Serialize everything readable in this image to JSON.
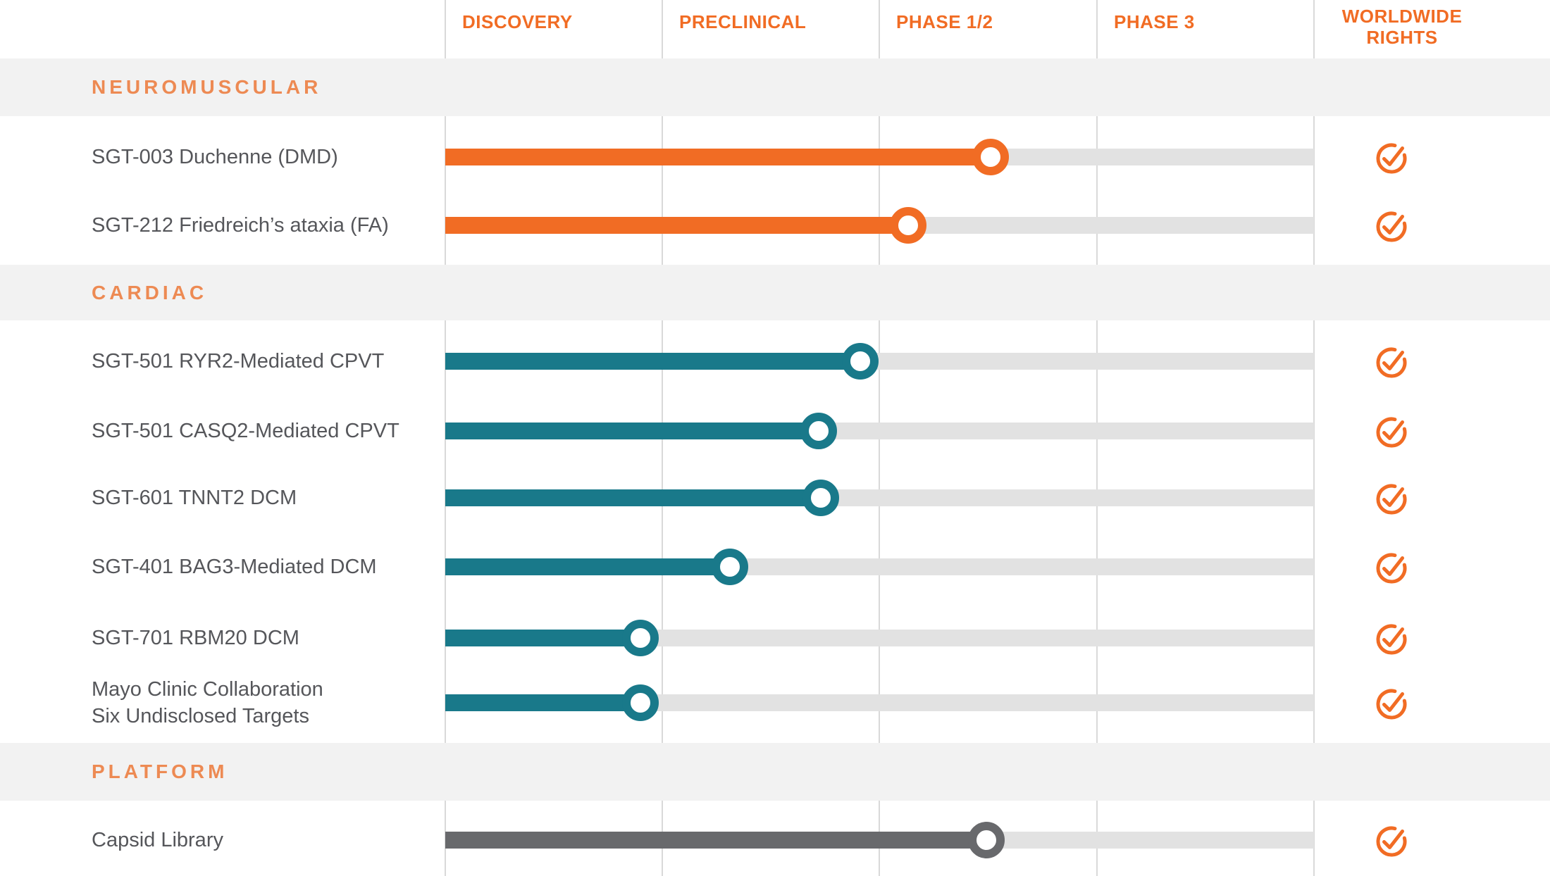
{
  "palette": {
    "bar_orange": "#f16c24",
    "bar_teal": "#19798a",
    "bar_gray": "#68696c",
    "track_gray": "#e2e2e2",
    "section_band_gray": "#f2f2f2",
    "section_label_orange": "#ed8a53",
    "header_label_orange": "#f16c24",
    "row_label_gray": "#55565a",
    "gridline_gray": "#d9d9d9",
    "check_orange": "#f16c24"
  },
  "chart_data": {
    "type": "bar",
    "variant": "drug-pipeline-progress",
    "grid": "vertical phase gridlines on",
    "legend_position": "none",
    "phase_columns": [
      "DISCOVERY",
      "PRECLINICAL",
      "PHASE 1/2",
      "PHASE 3"
    ],
    "rights_column_lines": [
      "WORLDWIDE",
      "RIGHTS"
    ],
    "scale_note": "progress in phase-column units: 0 = start of Discovery, 1 = start of Preclinical, 2 = start of Phase 1/2, 3 = start of Phase 3, 4 = end of Phase 3",
    "sections": [
      {
        "label": "NEUROMUSCULAR",
        "color_key": "orange",
        "programs": [
          {
            "label": "SGT-003 Duchenne (DMD)",
            "progress": 2.51,
            "worldwide_rights": true
          },
          {
            "label": "SGT-212 Friedreich’s ataxia (FA)",
            "progress": 2.13,
            "worldwide_rights": true
          }
        ]
      },
      {
        "label": "CARDIAC",
        "color_key": "teal",
        "programs": [
          {
            "label": "SGT-501 RYR2-Mediated CPVT",
            "progress": 1.91,
            "worldwide_rights": true
          },
          {
            "label": "SGT-501 CASQ2-Mediated CPVT",
            "progress": 1.72,
            "worldwide_rights": true
          },
          {
            "label": "SGT-601 TNNT2 DCM",
            "progress": 1.73,
            "worldwide_rights": true
          },
          {
            "label": "SGT-401 BAG3-Mediated DCM",
            "progress": 1.31,
            "worldwide_rights": true
          },
          {
            "label": "SGT-701 RBM20 DCM",
            "progress": 0.9,
            "worldwide_rights": true
          },
          {
            "label": "Mayo Clinic Collaboration",
            "label_line2": "Six Undisclosed Targets",
            "progress": 0.9,
            "worldwide_rights": true
          }
        ]
      },
      {
        "label": "PLATFORM",
        "color_key": "gray",
        "programs": [
          {
            "label": "Capsid Library",
            "progress": 2.49,
            "worldwide_rights": true
          }
        ]
      }
    ]
  }
}
